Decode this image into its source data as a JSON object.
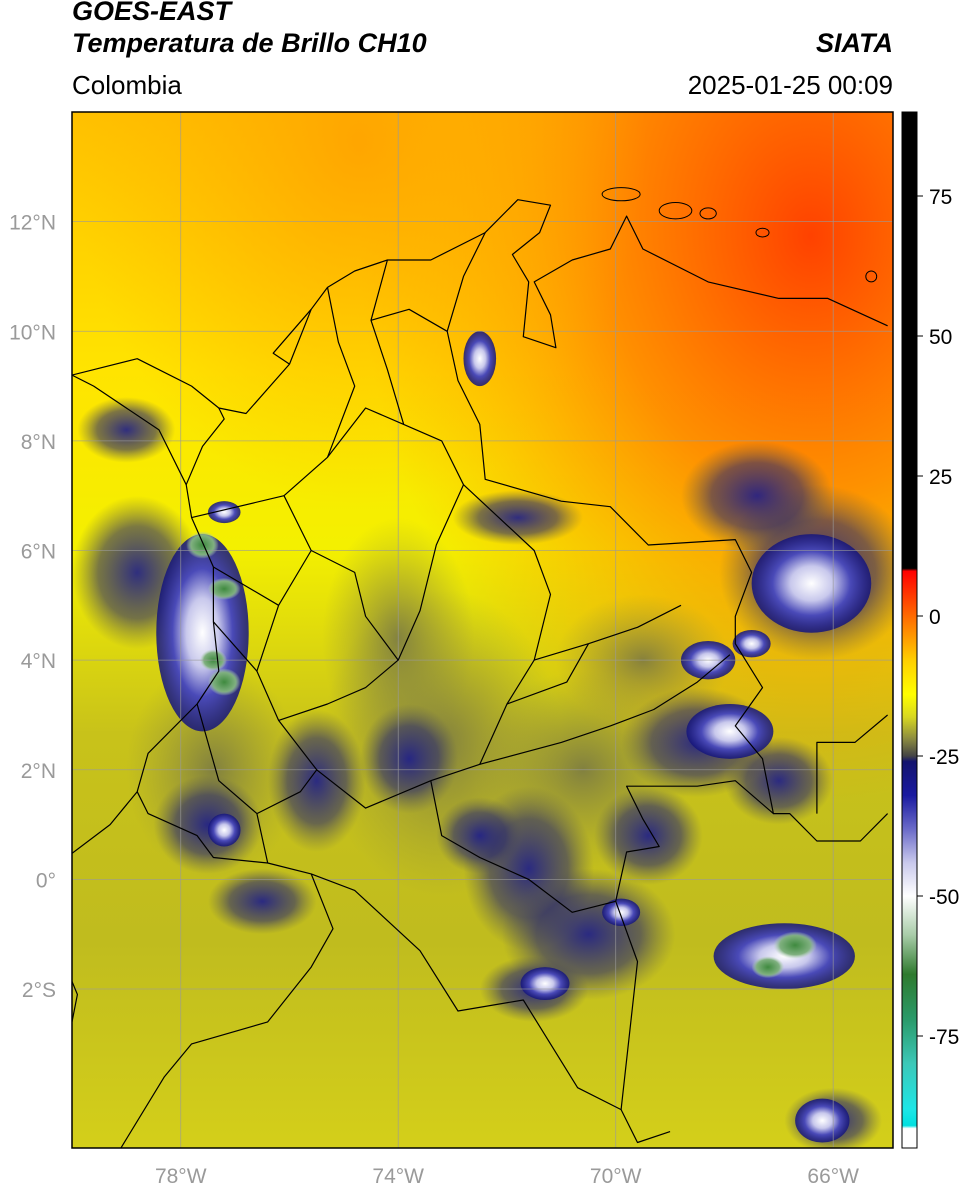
{
  "header": {
    "satellite": "GOES-EAST",
    "product": "Temperatura de Brillo CH10",
    "source": "SIATA",
    "region": "Colombia",
    "timestamp": "2025-01-25 00:09"
  },
  "map": {
    "lon_range": [
      -80.0,
      -64.9
    ],
    "lat_range": [
      -4.9,
      14.0
    ],
    "lon_ticks": [
      {
        "value": -78,
        "label": "78°W"
      },
      {
        "value": -74,
        "label": "74°W"
      },
      {
        "value": -70,
        "label": "70°W"
      },
      {
        "value": -66,
        "label": "66°W"
      }
    ],
    "lat_ticks": [
      {
        "value": 12,
        "label": "12°N"
      },
      {
        "value": 10,
        "label": "10°N"
      },
      {
        "value": 8,
        "label": "8°N"
      },
      {
        "value": 6,
        "label": "6°N"
      },
      {
        "value": 4,
        "label": "4°N"
      },
      {
        "value": 2,
        "label": "2°N"
      },
      {
        "value": 0,
        "label": "0°"
      },
      {
        "value": -2,
        "label": "2°S"
      }
    ],
    "gridlines": true
  },
  "colorbar": {
    "range": [
      -95,
      90
    ],
    "ticks": [
      {
        "value": 75,
        "label": "75"
      },
      {
        "value": 50,
        "label": "50"
      },
      {
        "value": 25,
        "label": "25"
      },
      {
        "value": 0,
        "label": "0"
      },
      {
        "value": -25,
        "label": "-25"
      },
      {
        "value": -50,
        "label": "-50"
      },
      {
        "value": -75,
        "label": "-75"
      }
    ],
    "stops": [
      {
        "value": 90,
        "color": "#000000"
      },
      {
        "value": 8.5,
        "color": "#000000"
      },
      {
        "value": 8,
        "color": "#ff0000"
      },
      {
        "value": 0,
        "color": "#ff6a00"
      },
      {
        "value": -8,
        "color": "#ffd000"
      },
      {
        "value": -14,
        "color": "#ffff00"
      },
      {
        "value": -18,
        "color": "#d8d820"
      },
      {
        "value": -22,
        "color": "#8a8a40"
      },
      {
        "value": -25,
        "color": "#444444"
      },
      {
        "value": -26,
        "color": "#14146e"
      },
      {
        "value": -32,
        "color": "#1a1aa0"
      },
      {
        "value": -38,
        "color": "#6a6ac8"
      },
      {
        "value": -44,
        "color": "#c8c8ec"
      },
      {
        "value": -50,
        "color": "#ffffff"
      },
      {
        "value": -57,
        "color": "#a8cca8"
      },
      {
        "value": -64,
        "color": "#2e7a2e"
      },
      {
        "value": -72,
        "color": "#2a9a6a"
      },
      {
        "value": -80,
        "color": "#3cc8b8"
      },
      {
        "value": -88,
        "color": "#1ee6e6"
      },
      {
        "value": -91,
        "color": "#00e0e0"
      },
      {
        "value": -91.5,
        "color": "#ffffff"
      },
      {
        "value": -95,
        "color": "#ffffff"
      }
    ]
  },
  "field_colors": {
    "coastline": "#000000",
    "border": "#000000",
    "gridline": "#9a9a9a"
  }
}
